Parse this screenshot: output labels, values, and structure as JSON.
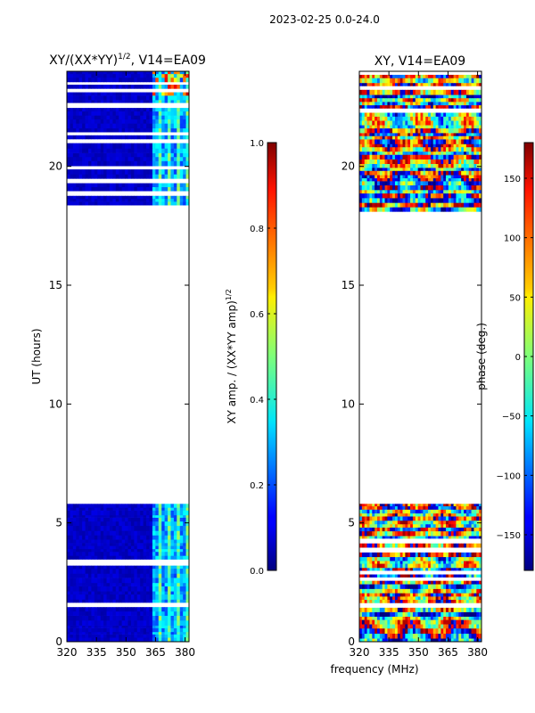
{
  "header": {
    "datetime": "2023-02-25 0.0-24.0"
  },
  "chart_data": [
    {
      "type": "heatmap",
      "title_main": "XY/(XX*YY)",
      "title_sup": "1/2",
      "title_tail": ", V14=EA09",
      "ylabel": "UT (hours)",
      "xlim": [
        320,
        382
      ],
      "ylim": [
        0,
        24
      ],
      "xticks": [
        {
          "value": 320,
          "label": "320"
        },
        {
          "value": 335,
          "label": "335"
        },
        {
          "value": 350,
          "label": "350"
        },
        {
          "value": 365,
          "label": "365"
        },
        {
          "value": 380,
          "label": "380"
        }
      ],
      "yticks": [
        {
          "value": 0,
          "label": "0"
        },
        {
          "value": 5,
          "label": "5"
        },
        {
          "value": 10,
          "label": "10"
        },
        {
          "value": 15,
          "label": "15"
        },
        {
          "value": 20,
          "label": "20"
        }
      ],
      "data_ranges_hours": [
        [
          0,
          5.8
        ],
        [
          18.1,
          24
        ]
      ],
      "colormap": "jet",
      "colorbar": {
        "label_main": "XY amp. / (XX*YY amp)",
        "label_sup": "1/2",
        "range": [
          0.0,
          1.0
        ],
        "ticks": [
          {
            "value": 0.0,
            "label": "0.0"
          },
          {
            "value": 0.2,
            "label": "0.2"
          },
          {
            "value": 0.4,
            "label": "0.4"
          },
          {
            "value": 0.6,
            "label": "0.6"
          },
          {
            "value": 0.8,
            "label": "0.8"
          },
          {
            "value": 1.0,
            "label": "1.0"
          }
        ]
      }
    },
    {
      "type": "heatmap",
      "title_main": "XY, V14=EA09",
      "xlabel": "frequency (MHz)",
      "xlim": [
        320,
        382
      ],
      "ylim": [
        0,
        24
      ],
      "xticks": [
        {
          "value": 320,
          "label": "320"
        },
        {
          "value": 335,
          "label": "335"
        },
        {
          "value": 350,
          "label": "350"
        },
        {
          "value": 365,
          "label": "365"
        },
        {
          "value": 380,
          "label": "380"
        }
      ],
      "yticks": [
        {
          "value": 0,
          "label": "0"
        },
        {
          "value": 5,
          "label": "5"
        },
        {
          "value": 10,
          "label": "10"
        },
        {
          "value": 15,
          "label": "15"
        },
        {
          "value": 20,
          "label": "20"
        }
      ],
      "data_ranges_hours": [
        [
          0,
          5.8
        ],
        [
          18.1,
          24
        ]
      ],
      "colormap": "jet",
      "colorbar": {
        "label_main": "phase (deg.)",
        "range": [
          -180,
          180
        ],
        "ticks": [
          {
            "value": -150,
            "label": "−150"
          },
          {
            "value": -100,
            "label": "−100"
          },
          {
            "value": -50,
            "label": "−50"
          },
          {
            "value": 0,
            "label": "0"
          },
          {
            "value": 50,
            "label": "50"
          },
          {
            "value": 100,
            "label": "100"
          },
          {
            "value": 150,
            "label": "150"
          }
        ]
      }
    }
  ]
}
